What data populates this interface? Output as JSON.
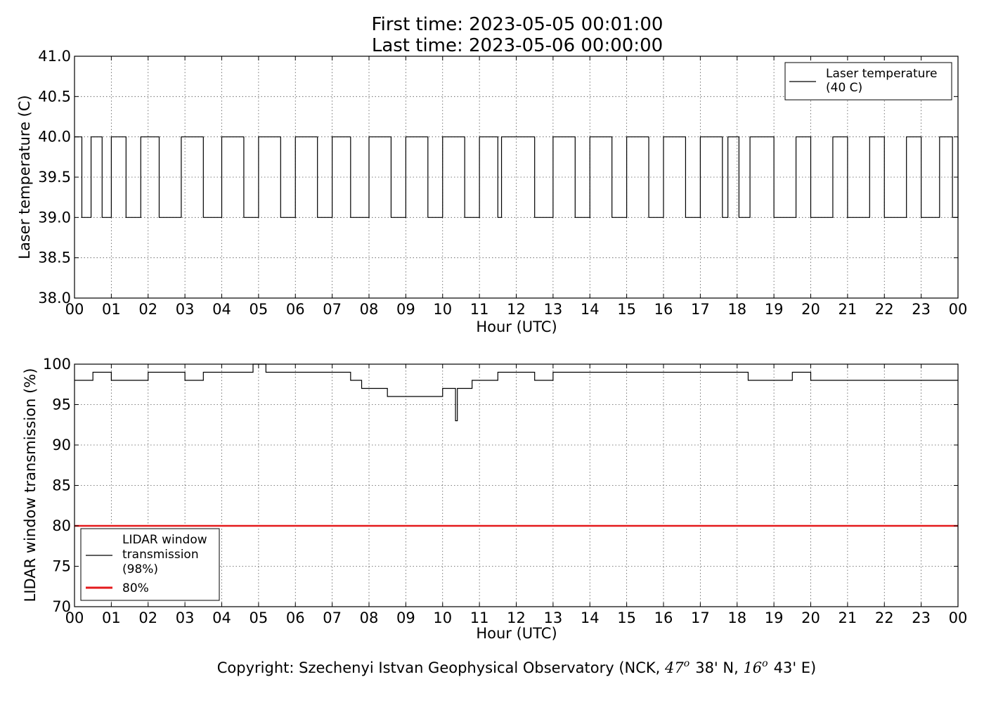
{
  "chart_data": [
    {
      "type": "line",
      "title_lines": [
        "First time: 2023-05-05 00:01:00",
        "Last time: 2023-05-06 00:00:00"
      ],
      "xlabel": "Hour (UTC)",
      "ylabel": "Laser temperature (C)",
      "xlim": [
        0,
        24
      ],
      "ylim": [
        38.0,
        41.0
      ],
      "x_tick_labels": [
        "00",
        "01",
        "02",
        "03",
        "04",
        "05",
        "06",
        "07",
        "08",
        "09",
        "10",
        "11",
        "12",
        "13",
        "14",
        "15",
        "16",
        "17",
        "18",
        "19",
        "20",
        "21",
        "22",
        "23",
        "00"
      ],
      "y_tick_labels": [
        "38.0",
        "38.5",
        "39.0",
        "39.5",
        "40.0",
        "40.5",
        "41.0"
      ],
      "y_ticks": [
        38.0,
        38.5,
        39.0,
        39.5,
        40.0,
        40.5,
        41.0
      ],
      "grid": true,
      "legend_position": "top-right",
      "series": [
        {
          "name_lines": [
            "Laser temperature",
            "(40 C)"
          ],
          "color": "#000000",
          "x": [
            0.0,
            0.2,
            0.45,
            0.75,
            1.0,
            1.4,
            1.8,
            2.3,
            2.9,
            3.5,
            4.0,
            4.6,
            5.0,
            5.6,
            6.0,
            6.6,
            7.0,
            7.5,
            8.0,
            8.6,
            9.0,
            9.6,
            10.0,
            10.6,
            11.0,
            11.5,
            11.6,
            12.0,
            12.5,
            13.0,
            13.6,
            14.0,
            14.6,
            15.0,
            15.6,
            16.0,
            16.6,
            17.0,
            17.6,
            17.75,
            18.05,
            18.35,
            19.0,
            19.6,
            20.0,
            20.6,
            21.0,
            21.6,
            22.0,
            22.6,
            23.0,
            23.5,
            23.85,
            24.0
          ],
          "values": [
            40.0,
            39.0,
            40.0,
            39.0,
            40.0,
            39.0,
            40.0,
            39.0,
            40.0,
            39.0,
            40.0,
            39.0,
            40.0,
            39.0,
            40.0,
            39.0,
            40.0,
            39.0,
            40.0,
            39.0,
            40.0,
            39.0,
            40.0,
            39.0,
            40.0,
            39.0,
            40.0,
            40.0,
            39.0,
            40.0,
            39.0,
            40.0,
            39.0,
            40.0,
            39.0,
            40.0,
            39.0,
            40.0,
            39.0,
            40.0,
            39.0,
            40.0,
            39.0,
            40.0,
            39.0,
            40.0,
            39.0,
            40.0,
            39.0,
            40.0,
            39.0,
            40.0,
            39.0,
            40.0
          ]
        }
      ]
    },
    {
      "type": "line",
      "xlabel": "Hour (UTC)",
      "ylabel": "LIDAR window transmission (%)",
      "xlim": [
        0,
        24
      ],
      "ylim": [
        70,
        100
      ],
      "x_tick_labels": [
        "00",
        "01",
        "02",
        "03",
        "04",
        "05",
        "06",
        "07",
        "08",
        "09",
        "10",
        "11",
        "12",
        "13",
        "14",
        "15",
        "16",
        "17",
        "18",
        "19",
        "20",
        "21",
        "22",
        "23",
        "00"
      ],
      "y_tick_labels": [
        "70",
        "75",
        "80",
        "85",
        "90",
        "95",
        "100"
      ],
      "y_ticks": [
        70,
        75,
        80,
        85,
        90,
        95,
        100
      ],
      "grid": true,
      "legend_position": "bottom-left",
      "series": [
        {
          "name_lines": [
            "LIDAR window",
            "transmission",
            "(98%)"
          ],
          "color": "#000000",
          "x": [
            0.0,
            0.5,
            1.0,
            2.0,
            3.0,
            3.5,
            4.0,
            4.8,
            4.85,
            5.2,
            6.0,
            7.0,
            7.5,
            7.8,
            8.2,
            8.5,
            8.8,
            9.0,
            9.3,
            9.6,
            10.0,
            10.3,
            10.35,
            10.4,
            10.8,
            11.0,
            11.5,
            12.0,
            12.5,
            13.0,
            13.5,
            14.0,
            14.5,
            15.0,
            16.0,
            17.0,
            18.0,
            18.3,
            19.0,
            19.5,
            20.0,
            21.0,
            22.0,
            23.0,
            24.0
          ],
          "values": [
            98,
            99,
            98,
            99,
            98,
            99,
            99,
            99,
            100,
            99,
            99,
            99,
            98,
            97,
            97,
            96,
            96,
            96,
            96,
            96,
            97,
            97,
            93,
            97,
            98,
            98,
            99,
            99,
            98,
            99,
            99,
            99,
            99,
            99,
            99,
            99,
            99,
            98,
            98,
            99,
            98,
            98,
            98,
            98,
            98
          ]
        },
        {
          "name": "80%",
          "color": "#e41a1c",
          "x": [
            0,
            24
          ],
          "values": [
            80,
            80
          ]
        }
      ]
    }
  ],
  "footer": {
    "copyright_prefix": "Copyright: Szechenyi Istvan Geophysical Observatory (NCK, ",
    "lat_deg": "47",
    "lat_sup": "o",
    "lat_min": "38' N, ",
    "lon_deg": "16",
    "lon_sup": "o",
    "lon_min": "43' E)"
  }
}
